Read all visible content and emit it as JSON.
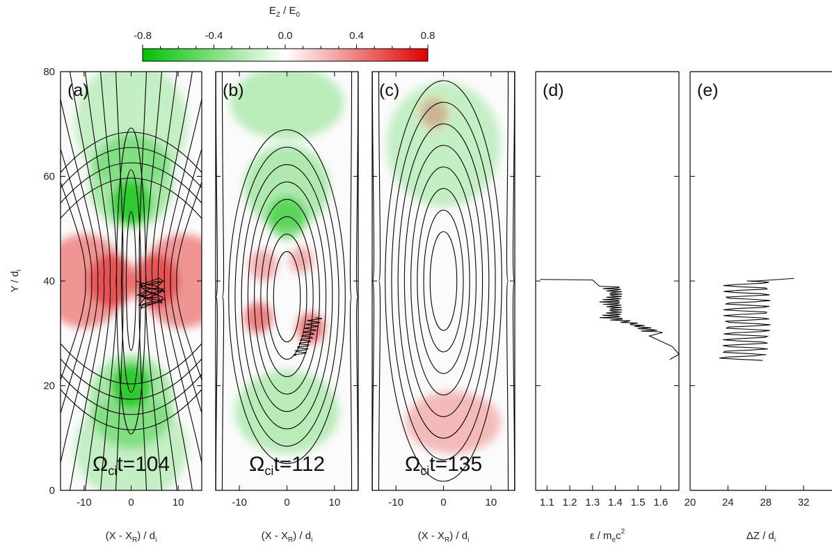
{
  "colorbar": {
    "title_main": "E",
    "title_sub1": "Z",
    "title_mid": " / E",
    "title_sub2": "0",
    "ticks": [
      "-0.8",
      "-0.4",
      "0.0",
      "0.4",
      "0.8"
    ],
    "range": [
      -0.8,
      0.8
    ],
    "negative_color": "#00c000",
    "positive_color": "#e00000"
  },
  "colors": {
    "field_lines": "#000000",
    "trajectory": "#000000"
  },
  "chart_data": [
    {
      "type": "heatmap",
      "panel": "(a)",
      "time_label": {
        "omega": "Ω",
        "sub": "ci",
        "rest": "t=104"
      },
      "x_range": [
        -15,
        15
      ],
      "y_range": [
        0,
        80
      ],
      "x_ticks": [
        "-10",
        "0",
        "10"
      ],
      "xlabel": {
        "a": "(X - X",
        "sub": "R",
        "b": ") / d",
        "sub2": "i"
      },
      "ylabel": {
        "a": "Y / d",
        "sub": "i"
      },
      "y_ticks": [
        "0",
        "20",
        "40",
        "60",
        "80"
      ],
      "blobs": [
        {
          "x": 0,
          "y": 55,
          "rx": 4,
          "ry": 4,
          "v": -0.75
        },
        {
          "x": 0,
          "y": 59,
          "rx": 9,
          "ry": 9,
          "v": -0.25
        },
        {
          "x": 0,
          "y": 20,
          "rx": 4,
          "ry": 4,
          "v": -0.75
        },
        {
          "x": 0,
          "y": 17,
          "rx": 9,
          "ry": 9,
          "v": -0.25
        },
        {
          "x": -4,
          "y": 40,
          "rx": 5,
          "ry": 5,
          "v": 0.4
        },
        {
          "x": 5,
          "y": 40,
          "rx": 5,
          "ry": 5,
          "v": 0.4
        },
        {
          "x": -10,
          "y": 40,
          "rx": 9,
          "ry": 9,
          "v": 0.35
        },
        {
          "x": 11,
          "y": 40,
          "rx": 9,
          "ry": 9,
          "v": 0.35
        },
        {
          "x": 0,
          "y": 70,
          "rx": 12,
          "ry": 12,
          "v": -0.1
        },
        {
          "x": 0,
          "y": 8,
          "rx": 12,
          "ry": 10,
          "v": -0.1
        }
      ],
      "contours": {
        "type": "reconnecting",
        "cx": 0,
        "cy": 40,
        "n": 13
      }
    },
    {
      "type": "heatmap",
      "panel": "(b)",
      "time_label": {
        "omega": "Ω",
        "sub": "ci",
        "rest": "t=112"
      },
      "x_range": [
        -15,
        15
      ],
      "y_range": [
        0,
        80
      ],
      "x_ticks": [
        "-10",
        "0",
        "10"
      ],
      "xlabel": {
        "a": "(X - X",
        "sub": "R",
        "b": ") / d",
        "sub2": "i"
      },
      "blobs": [
        {
          "x": 0,
          "y": 52,
          "rx": 4,
          "ry": 4,
          "v": -0.45
        },
        {
          "x": 0,
          "y": 58,
          "rx": 9,
          "ry": 8,
          "v": -0.2
        },
        {
          "x": 0,
          "y": 74,
          "rx": 12,
          "ry": 7,
          "v": -0.15
        },
        {
          "x": -6,
          "y": 33,
          "rx": 3,
          "ry": 3,
          "v": 0.45
        },
        {
          "x": 5,
          "y": 31,
          "rx": 3,
          "ry": 3,
          "v": 0.45
        },
        {
          "x": -5,
          "y": 43,
          "rx": 3,
          "ry": 3,
          "v": 0.2
        },
        {
          "x": 3,
          "y": 44,
          "rx": 2.5,
          "ry": 2.5,
          "v": 0.2
        },
        {
          "x": 0,
          "y": 15,
          "rx": 11,
          "ry": 8,
          "v": -0.15
        }
      ],
      "contours": {
        "type": "island",
        "cx": 0,
        "cy": 37,
        "n": 12,
        "scale": 0.5
      }
    },
    {
      "type": "heatmap",
      "panel": "(c)",
      "time_label": {
        "omega": "Ω",
        "sub": "ci",
        "rest": "t=135"
      },
      "x_range": [
        -15,
        15
      ],
      "y_range": [
        0,
        80
      ],
      "x_ticks": [
        "-10",
        "0",
        "10"
      ],
      "xlabel": {
        "a": "(X - X",
        "sub": "R",
        "b": ") / d",
        "sub2": "i"
      },
      "blobs": [
        {
          "x": 0,
          "y": 66,
          "rx": 12,
          "ry": 12,
          "v": -0.1
        },
        {
          "x": 2,
          "y": 13,
          "rx": 10,
          "ry": 6,
          "v": 0.15
        },
        {
          "x": -2,
          "y": 72,
          "rx": 3,
          "ry": 3,
          "v": 0.12
        }
      ],
      "contours": {
        "type": "island",
        "cx": 0,
        "cy": 40,
        "n": 12,
        "scale": 0.7
      }
    },
    {
      "type": "line",
      "panel": "(d)",
      "x_range": [
        1.05,
        1.68
      ],
      "y_range": [
        0,
        80
      ],
      "x_ticks": [
        "1.1",
        "1.2",
        "1.3",
        "1.4",
        "1.5",
        "1.6"
      ],
      "x_tick_values": [
        1.1,
        1.2,
        1.3,
        1.4,
        1.5,
        1.6
      ],
      "xlabel": {
        "a": "ε / m",
        "sub": "e",
        "b": "c",
        "sup": "2"
      },
      "trajectory_kind": "energy"
    },
    {
      "type": "line",
      "panel": "(e)",
      "x_range": [
        20,
        35
      ],
      "y_range": [
        0,
        80
      ],
      "x_ticks": [
        "20",
        "24",
        "28",
        "32"
      ],
      "x_tick_values": [
        20,
        24,
        28,
        32
      ],
      "xlabel": {
        "a": "ΔZ / d",
        "sub": "i"
      },
      "trajectory_kind": "dz"
    }
  ]
}
